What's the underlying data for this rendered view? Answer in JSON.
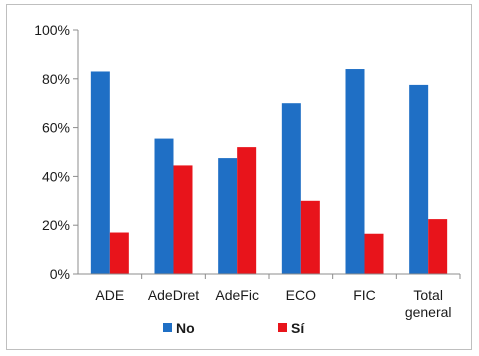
{
  "chart_data": {
    "type": "bar",
    "categories": [
      "ADE",
      "AdeDret",
      "AdeFic",
      "ECO",
      "FIC",
      "Total general"
    ],
    "series": [
      {
        "name": "No",
        "color": "#1f6fc5",
        "values": [
          83,
          55.5,
          47.5,
          70,
          84,
          77.5
        ]
      },
      {
        "name": "Sí",
        "color": "#e8141b",
        "values": [
          17,
          44.5,
          52,
          30,
          16.5,
          22.5
        ]
      }
    ],
    "y_ticks": [
      "0%",
      "20%",
      "40%",
      "60%",
      "80%",
      "100%"
    ],
    "ylim": [
      0,
      100
    ],
    "legend_position": "bottom",
    "grid": false
  }
}
